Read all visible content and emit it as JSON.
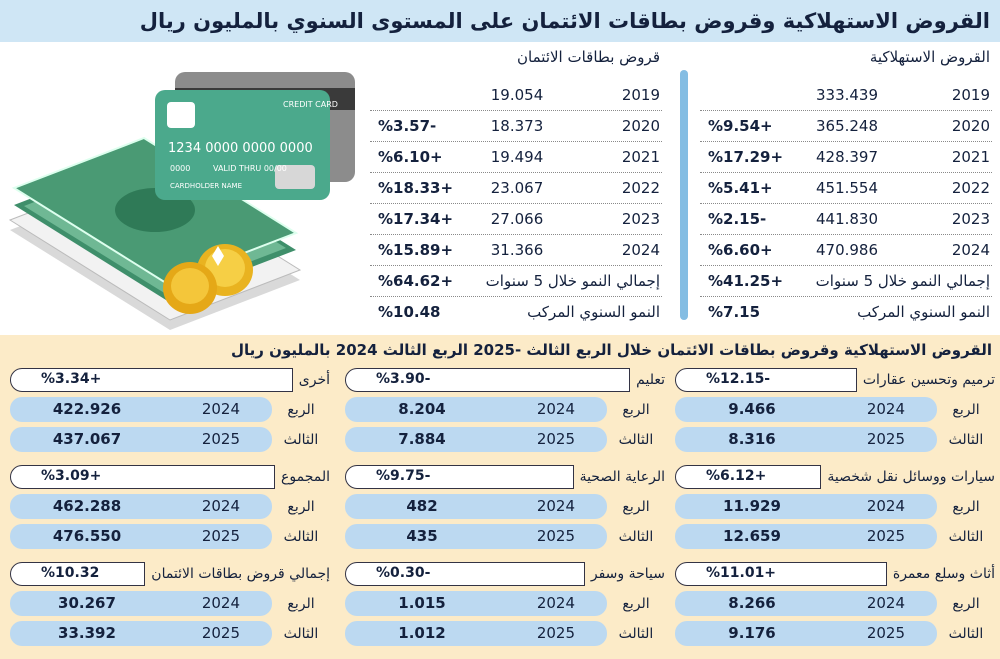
{
  "header": {
    "title": "القروض الاستهلاكية وقروض بطاقات الائتمان على المستوى السنوي بالمليون ريال"
  },
  "illustration": {
    "card_title": "CREDIT CARD",
    "card_number": "1234 0000 0000 0000",
    "card_small": "0000",
    "valid": "VALID THRU 00/00",
    "holder": "CARDHOLDER NAME"
  },
  "annual": [
    {
      "title": "القروض الاستهلاكية",
      "rows": [
        {
          "year": "2019",
          "value": "333.439"
        },
        {
          "year": "2020",
          "value": "365.248",
          "growth": "%9.54+"
        },
        {
          "year": "2021",
          "value": "428.397",
          "growth": "%17.29+"
        },
        {
          "year": "2022",
          "value": "451.554",
          "growth": "%5.41+"
        },
        {
          "year": "2023",
          "value": "441.830",
          "growth": "%2.15-"
        },
        {
          "year": "2024",
          "value": "470.986",
          "growth": "%6.60+"
        }
      ],
      "summary": [
        {
          "label": "إجمالي النمو خلال 5 سنوات",
          "value": "%41.25+"
        },
        {
          "label": "النمو السنوي المركب",
          "value": "%7.15"
        }
      ]
    },
    {
      "title": "قروض بطاقات الائتمان",
      "rows": [
        {
          "year": "2019",
          "value": "19.054"
        },
        {
          "year": "2020",
          "value": "18.373",
          "growth": "%3.57-"
        },
        {
          "year": "2021",
          "value": "19.494",
          "growth": "%6.10+"
        },
        {
          "year": "2022",
          "value": "23.067",
          "growth": "%18.33+"
        },
        {
          "year": "2023",
          "value": "27.066",
          "growth": "%17.34+"
        },
        {
          "year": "2024",
          "value": "31.366",
          "growth": "%15.89+"
        }
      ],
      "summary": [
        {
          "label": "إجمالي النمو خلال 5 سنوات",
          "value": "%64.62+"
        },
        {
          "label": "النمو السنوي المركب",
          "value": "%10.48"
        }
      ]
    }
  ],
  "quarterly": {
    "title": "القروض الاستهلاكية وقروض بطاقات الائتمان خلال الربع الثالث -2025 الربع الثالث 2024 بالمليون ريال",
    "cards": [
      {
        "label": "ترميم وتحسين عقارات",
        "change": "%12.15-",
        "rows": [
          {
            "period": "الربع",
            "year": "2024",
            "value": "9.466"
          },
          {
            "period": "الثالث",
            "year": "2025",
            "value": "8.316"
          }
        ]
      },
      {
        "label": "سيارات ووسائل نقل شخصية",
        "change": "%6.12+",
        "rows": [
          {
            "period": "الربع",
            "year": "2024",
            "value": "11.929"
          },
          {
            "period": "الثالث",
            "year": "2025",
            "value": "12.659"
          }
        ]
      },
      {
        "label": "أثاث وسلع معمرة",
        "change": "%11.01+",
        "rows": [
          {
            "period": "الربع",
            "year": "2024",
            "value": "8.266"
          },
          {
            "period": "الثالث",
            "year": "2025",
            "value": "9.176"
          }
        ]
      },
      {
        "label": "تعليم",
        "change": "%3.90-",
        "rows": [
          {
            "period": "الربع",
            "year": "2024",
            "value": "8.204"
          },
          {
            "period": "الثالث",
            "year": "2025",
            "value": "7.884"
          }
        ]
      },
      {
        "label": "الرعاية الصحية",
        "change": "%9.75-",
        "rows": [
          {
            "period": "الربع",
            "year": "2024",
            "value": "482"
          },
          {
            "period": "الثالث",
            "year": "2025",
            "value": "435"
          }
        ]
      },
      {
        "label": "سياحة وسفر",
        "change": "%0.30-",
        "rows": [
          {
            "period": "الربع",
            "year": "2024",
            "value": "1.015"
          },
          {
            "period": "الثالث",
            "year": "2025",
            "value": "1.012"
          }
        ]
      },
      {
        "label": "أخرى",
        "change": "%3.34+",
        "rows": [
          {
            "period": "الربع",
            "year": "2024",
            "value": "422.926"
          },
          {
            "period": "الثالث",
            "year": "2025",
            "value": "437.067"
          }
        ]
      },
      {
        "label": "المجموع",
        "change": "%3.09+",
        "rows": [
          {
            "period": "الربع",
            "year": "2024",
            "value": "462.288"
          },
          {
            "period": "الثالث",
            "year": "2025",
            "value": "476.550"
          }
        ]
      },
      {
        "label": "إجمالي قروض بطاقات الائتمان",
        "change": "%10.32",
        "rows": [
          {
            "period": "الربع",
            "year": "2024",
            "value": "30.267"
          },
          {
            "period": "الثالث",
            "year": "2025",
            "value": "33.392"
          }
        ]
      }
    ]
  }
}
